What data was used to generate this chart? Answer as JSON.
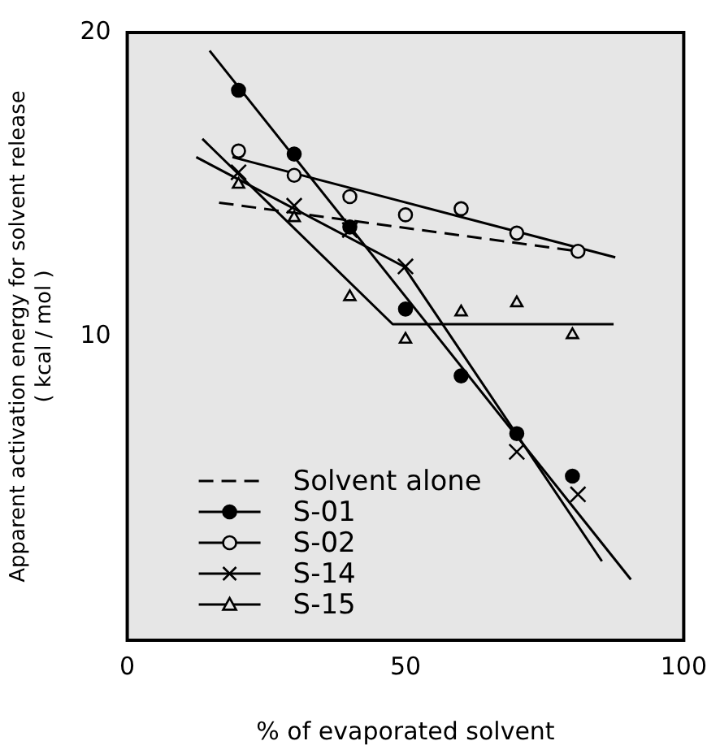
{
  "chart_data": {
    "type": "scatter",
    "xlabel": "% of evaporated solvent",
    "ylabel": "Apparent activation energy for solvent release\n( kcal / mol )",
    "xlim": [
      0,
      100
    ],
    "xticks": [
      0,
      50,
      100
    ],
    "ylim": [
      0,
      20
    ],
    "yticks": [
      10,
      20
    ],
    "legend": "bottom left",
    "series": [
      {
        "name": "Solvent alone",
        "type": "line",
        "color": "#000000",
        "line_style": "dashed",
        "marker": "none",
        "x": [
          16.5,
          81
        ],
        "values": [
          14.4,
          12.8
        ]
      },
      {
        "name": "S-01",
        "color": "#000000",
        "marker": "circle",
        "x": [
          20,
          30,
          40,
          50,
          60,
          70,
          80
        ],
        "values": [
          18.1,
          16.0,
          13.6,
          10.9,
          8.7,
          6.8,
          5.4
        ]
      },
      {
        "name": "S-02",
        "color": "#000000",
        "marker": "circle-open",
        "x": [
          20,
          30,
          40,
          50,
          60,
          70,
          81
        ],
        "values": [
          16.1,
          15.3,
          14.6,
          14.0,
          14.2,
          13.4,
          12.8
        ]
      },
      {
        "name": "S-14",
        "color": "#000000",
        "marker": "cross",
        "x": [
          20,
          30,
          40,
          50,
          60,
          70,
          81
        ],
        "values": [
          15.4,
          14.3,
          13.5,
          12.3,
          null,
          6.2,
          4.8
        ]
      },
      {
        "name": "S-15",
        "color": "#000000",
        "marker": "triangle",
        "x": [
          20,
          30,
          40,
          50,
          60,
          70,
          80
        ],
        "values": [
          15.0,
          13.9,
          11.3,
          9.9,
          10.8,
          11.1,
          10.05
        ]
      },
      {
        "type": "line",
        "color": "#000000",
        "line_style": "solid",
        "marker": "none",
        "x": [
          14.8,
          90.5
        ],
        "values": [
          19.4,
          2.0
        ]
      },
      {
        "type": "line",
        "color": "#000000",
        "line_style": "solid",
        "marker": "none",
        "x": [
          18.9,
          87.7
        ],
        "values": [
          15.9,
          12.6
        ]
      },
      {
        "type": "line",
        "color": "#000000",
        "line_style": "solid",
        "marker": "none",
        "x": [
          12.4,
          49.7,
          85.3
        ],
        "values": [
          15.9,
          12.3,
          2.6
        ]
      },
      {
        "type": "line",
        "color": "#000000",
        "line_style": "solid",
        "marker": "none",
        "x": [
          13.5,
          47.7,
          87.4
        ],
        "values": [
          16.5,
          10.4,
          10.4
        ]
      }
    ]
  }
}
